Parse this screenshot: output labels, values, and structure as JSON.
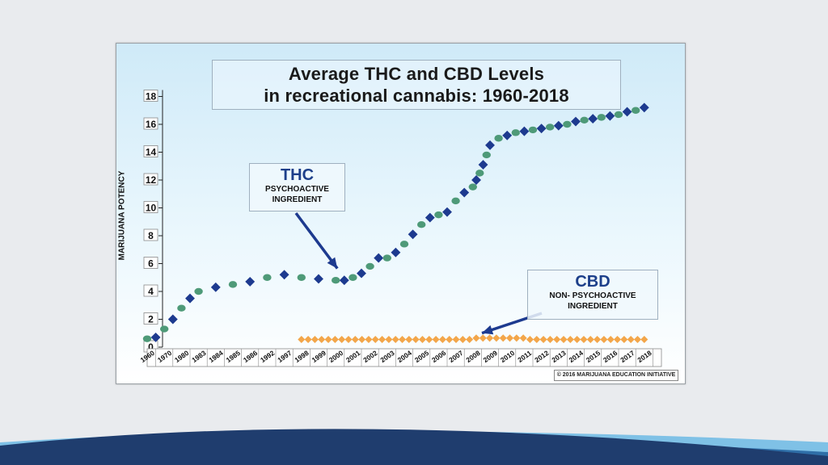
{
  "slide": {
    "background": "#e9ebee",
    "wave_colors": [
      "#1f3d6e",
      "#2f6fa8",
      "#7fc1e6"
    ]
  },
  "chart_data": {
    "type": "scatter",
    "title": "Average THC and CBD Levels",
    "subtitle": "in recreational cannabis: 1960-2018",
    "ylabel": "MARIJUANA POTENCY",
    "xlabel": "",
    "ylim": [
      0,
      18
    ],
    "yticks": [
      0,
      2,
      4,
      6,
      8,
      10,
      12,
      14,
      16,
      18
    ],
    "x_tick_labels": [
      "1960",
      "1970",
      "1980",
      "1983",
      "1984",
      "1985",
      "1986",
      "1992",
      "1997",
      "1998",
      "1999",
      "2000",
      "2001",
      "2002",
      "2003",
      "2004",
      "2005",
      "2006",
      "2007",
      "2008",
      "2009",
      "2010",
      "2011",
      "2012",
      "2013",
      "2014",
      "2015",
      "2016",
      "2017",
      "2018"
    ],
    "grid": false,
    "series": [
      {
        "name": "THC",
        "marker": "alternating-diamond-circle",
        "colors": [
          "#1d3a8f",
          "#4e9a78"
        ],
        "x": [
          0,
          0.5,
          1,
          1.5,
          2,
          2.5,
          3,
          4,
          5,
          6,
          7,
          8,
          9,
          10,
          11,
          11.5,
          12,
          12.5,
          13,
          13.5,
          14,
          14.5,
          15,
          15.5,
          16,
          16.5,
          17,
          17.5,
          18,
          18.5,
          19,
          19.2,
          19.4,
          19.6,
          19.8,
          20,
          20.5,
          21,
          21.5,
          22,
          22.5,
          23,
          23.5,
          24,
          24.5,
          25,
          25.5,
          26,
          26.5,
          27,
          27.5,
          28,
          28.5,
          29
        ],
        "values": [
          0.6,
          0.7,
          1.3,
          2.0,
          2.8,
          3.5,
          4.0,
          4.3,
          4.5,
          4.7,
          5.0,
          5.2,
          5.0,
          4.9,
          4.8,
          4.8,
          5.0,
          5.3,
          5.8,
          6.4,
          6.4,
          6.8,
          7.4,
          8.1,
          8.8,
          9.3,
          9.5,
          9.7,
          10.5,
          11.1,
          11.5,
          12.0,
          12.5,
          13.1,
          13.8,
          14.5,
          15.0,
          15.2,
          15.4,
          15.5,
          15.6,
          15.7,
          15.8,
          15.9,
          16.0,
          16.2,
          16.3,
          16.4,
          16.5,
          16.6,
          16.7,
          16.9,
          17.0,
          17.2
        ]
      },
      {
        "name": "CBD",
        "marker": "diamond",
        "colors": [
          "#f3a64a"
        ],
        "x_start": 9,
        "x_end": 29,
        "count": 52,
        "value_plateau": 0.55,
        "value_peak": 0.65
      }
    ],
    "annotations": [
      {
        "name": "thc-callout",
        "heading": "THC",
        "lines": [
          "PSYCHOACTIVE",
          "INGREDIENT"
        ],
        "points_to_x": 11,
        "points_to_y": 5.3
      },
      {
        "name": "cbd-callout",
        "heading": "CBD",
        "lines": [
          "NON- PSYCHOACTIVE",
          "INGREDIENT"
        ],
        "points_to_x": 20,
        "points_to_y": 0.6
      }
    ],
    "credit": "© 2016 MARIJUANA EDUCATION INITIATIVE",
    "background_gradient": [
      "#cfeaf8",
      "#eaf7fd",
      "#ffffff"
    ]
  }
}
